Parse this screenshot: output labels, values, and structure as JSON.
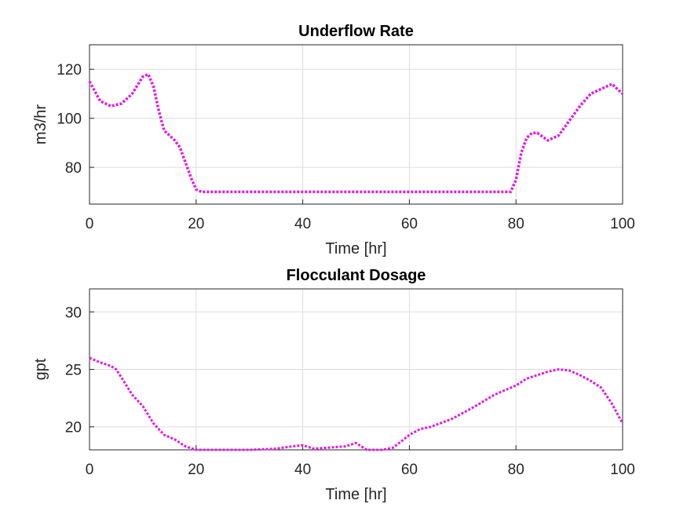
{
  "chart_data": [
    {
      "type": "line",
      "title": "Underflow Rate",
      "xlabel": "Time [hr]",
      "ylabel": "m3/hr",
      "xlim": [
        0,
        100
      ],
      "ylim": [
        65,
        130
      ],
      "xticks": [
        0,
        20,
        40,
        60,
        80,
        100
      ],
      "yticks": [
        80,
        100,
        120
      ],
      "grid": true,
      "line_style": "dotted",
      "color": "#e21ce2",
      "series": [
        {
          "x": [
            0,
            2,
            4,
            6,
            8,
            10,
            11,
            12,
            13,
            14,
            16,
            17,
            18,
            19,
            20,
            21,
            30,
            40,
            50,
            60,
            70,
            79,
            80,
            81,
            82,
            83,
            84,
            86,
            88,
            90,
            92,
            94,
            96,
            97,
            98,
            100
          ],
          "values": [
            115,
            107,
            105,
            106,
            110,
            117,
            118,
            113,
            103,
            95,
            91,
            88,
            82,
            76,
            71,
            70,
            70,
            70,
            70,
            70,
            70,
            70,
            75,
            86,
            92,
            94,
            94,
            91,
            93,
            99,
            105,
            110,
            112,
            113,
            114,
            110
          ]
        }
      ]
    },
    {
      "type": "line",
      "title": "Flocculant Dosage",
      "xlabel": "Time [hr]",
      "ylabel": "gpt",
      "xlim": [
        0,
        100
      ],
      "ylim": [
        18,
        32
      ],
      "xticks": [
        0,
        20,
        40,
        60,
        80,
        100
      ],
      "yticks": [
        20,
        25,
        30
      ],
      "grid": true,
      "line_style": "dotted",
      "color": "#e21ce2",
      "series": [
        {
          "x": [
            0,
            2,
            4,
            5,
            6,
            8,
            10,
            12,
            14,
            16,
            18,
            20,
            25,
            30,
            35,
            38,
            40,
            42,
            45,
            48,
            50,
            52,
            55,
            57,
            60,
            62,
            64,
            68,
            72,
            76,
            80,
            82,
            84,
            86,
            88,
            90,
            92,
            94,
            96,
            98,
            100
          ],
          "values": [
            26,
            25.6,
            25.3,
            25,
            24.3,
            22.8,
            21.8,
            20.3,
            19.3,
            18.9,
            18.3,
            18,
            18,
            18,
            18.1,
            18.3,
            18.4,
            18.1,
            18.2,
            18.3,
            18.6,
            18,
            18,
            18.2,
            19.3,
            19.8,
            20,
            20.7,
            21.7,
            22.8,
            23.6,
            24.2,
            24.5,
            24.8,
            25,
            24.9,
            24.5,
            24,
            23.4,
            22,
            20.3
          ]
        }
      ]
    }
  ]
}
